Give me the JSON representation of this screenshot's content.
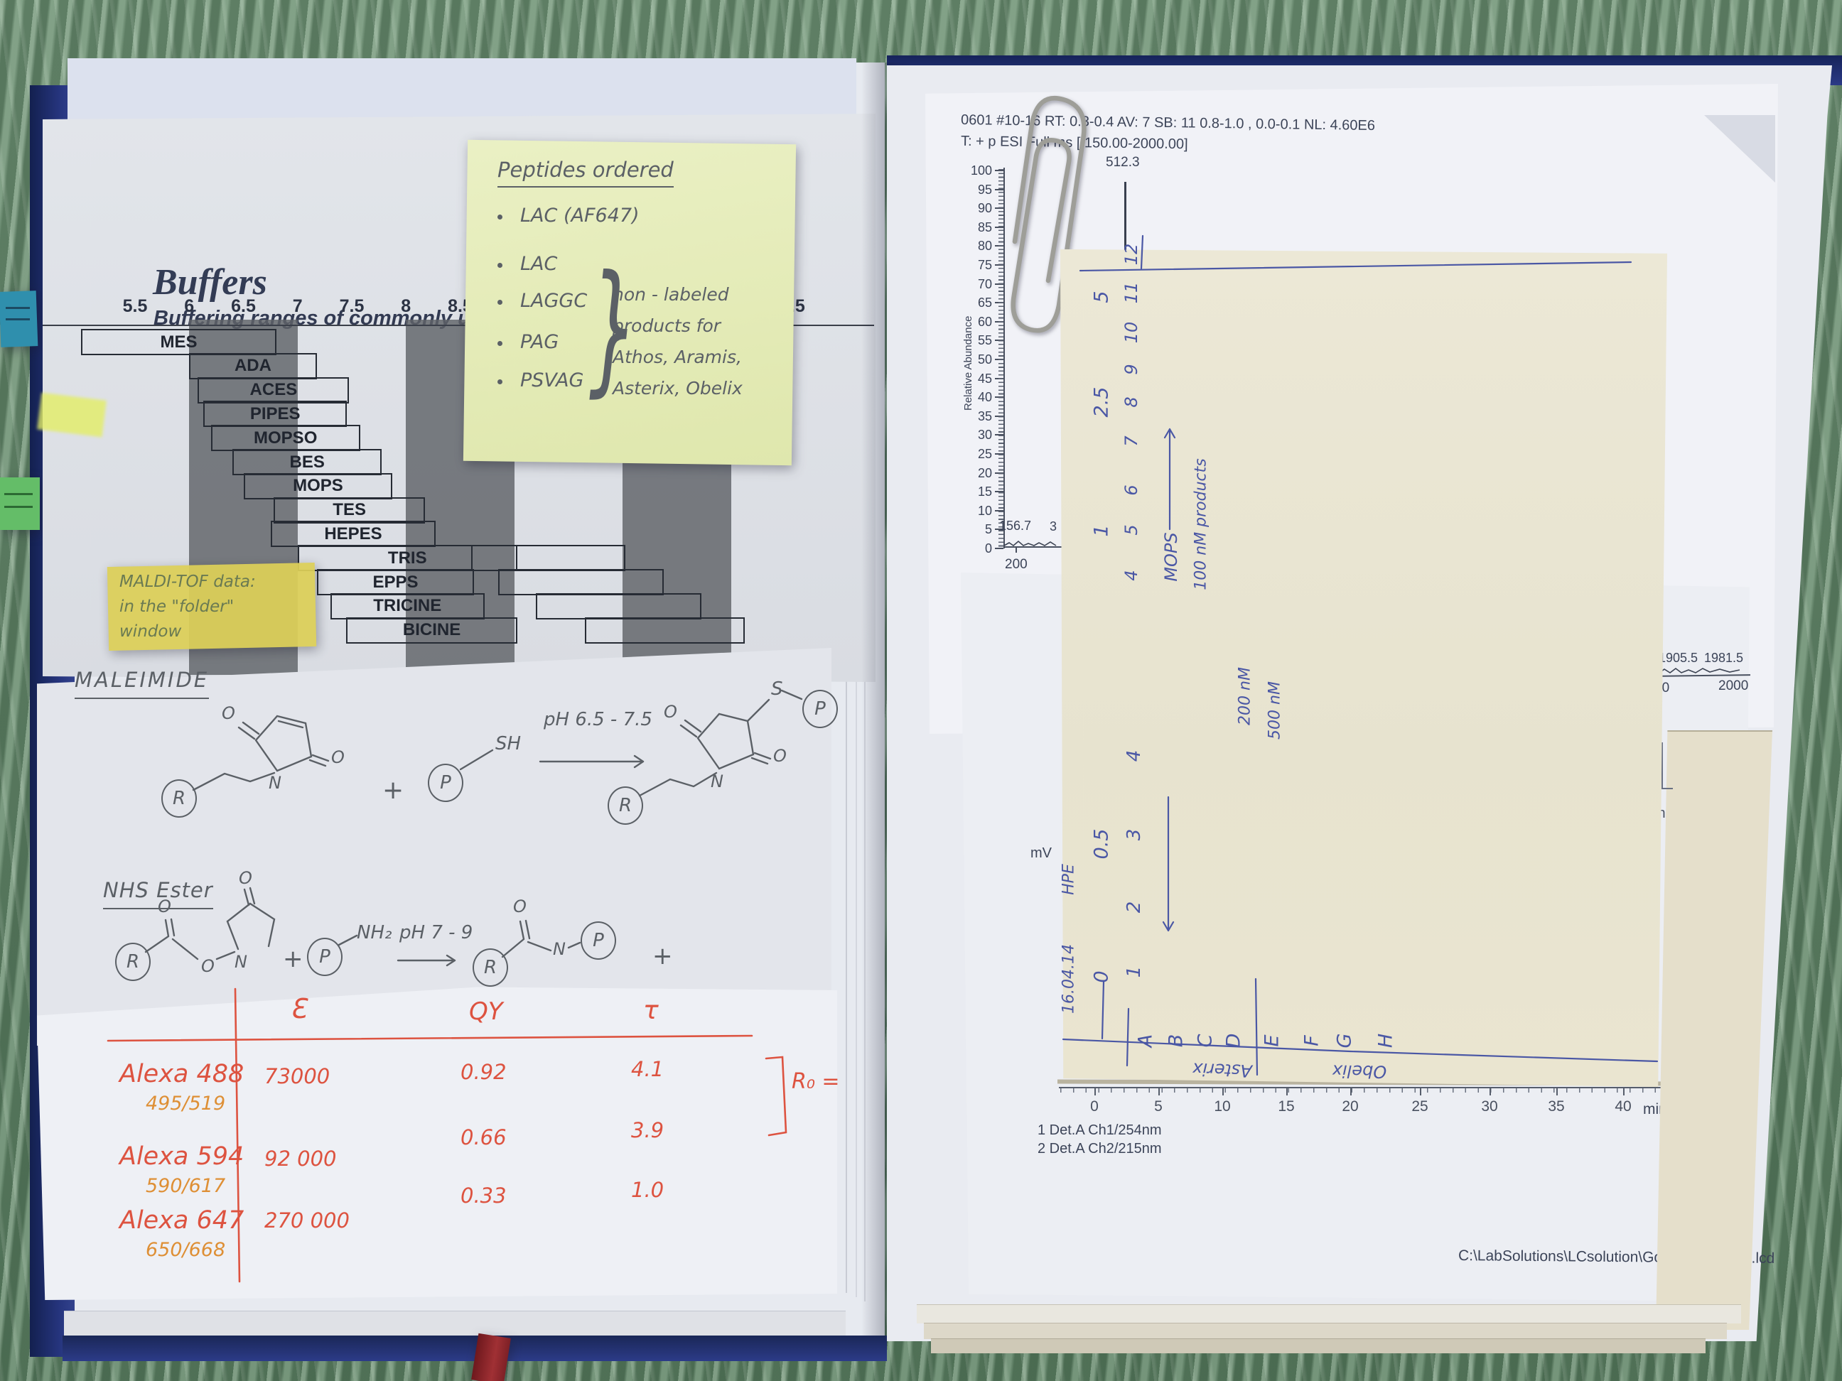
{
  "left_page": {
    "buffers_chart": {
      "title": "Buffers",
      "subtitle": "Buffering ranges of commonly used buff",
      "axis_labels": [
        "5.5",
        "6",
        "6.5",
        "7",
        "7.5",
        "8",
        "8.5"
      ],
      "axis_fragment": "1.5",
      "bars": [
        {
          "label": "MES",
          "from": 5.0,
          "to": 6.78
        },
        {
          "label": "ADA",
          "from": 6.0,
          "to": 7.15
        },
        {
          "label": "ACES",
          "from": 6.08,
          "to": 7.45
        },
        {
          "label": "PIPES",
          "from": 6.13,
          "to": 7.43
        },
        {
          "label": "MOPSO",
          "from": 6.2,
          "to": 7.55
        },
        {
          "label": "BES",
          "from": 6.4,
          "to": 7.75
        },
        {
          "label": "MOPS",
          "from": 6.5,
          "to": 7.85
        },
        {
          "label": "TES",
          "from": 6.78,
          "to": 8.15
        },
        {
          "label": "HEPES",
          "from": 6.75,
          "to": 8.25
        },
        {
          "label": "TRIS",
          "from": 7.0,
          "to": 9.0
        },
        {
          "label": "EPPS",
          "from": 7.18,
          "to": 8.6
        },
        {
          "label": "TRICINE",
          "from": 7.3,
          "to": 8.7
        },
        {
          "label": "BICINE",
          "from": 7.45,
          "to": 9.0
        }
      ]
    },
    "sticky_note_peptides": {
      "title": "Peptides ordered",
      "items": [
        "LAC (AF647)",
        "LAC",
        "LAGGC",
        "PAG",
        "PSVAG"
      ],
      "brace_glyph": "}",
      "note_lines": [
        "non - labeled",
        "products for",
        "Athos, Aramis,",
        "Asterix, Obelix"
      ]
    },
    "sticky_note_maldi": {
      "lines": [
        "MALDI-TOF data:",
        "in the \"folder\"",
        "window"
      ]
    },
    "maleimide_section": {
      "title": "MALEIMIDE",
      "labels": {
        "r": "R",
        "p": "P",
        "o": "O",
        "n": "N",
        "s": "S",
        "sh": "SH",
        "plus": "+",
        "ph": "pH 6.5 - 7.5"
      }
    },
    "nhs_section": {
      "title": "NHS Ester",
      "labels": {
        "r": "R",
        "p": "P",
        "o": "O",
        "n": "N",
        "nh2": "NH₂",
        "plus": "+",
        "ph": "pH 7 - 9"
      }
    },
    "dye_table": {
      "col_epsilon": "Ɛ",
      "col_qy": "QY",
      "col_tau": "τ",
      "rows": [
        {
          "name": "Alexa 488",
          "wavelengths": "495/519",
          "epsilon": "73000",
          "qy": "0.92",
          "tau": "4.1"
        },
        {
          "name": "Alexa 594",
          "wavelengths": "590/617",
          "epsilon": "92 000",
          "qy": "0.66",
          "tau": "3.9"
        },
        {
          "name": "Alexa 647",
          "wavelengths": "650/668",
          "epsilon": "270 000",
          "qy": "0.33",
          "tau": "1.0"
        }
      ],
      "r0_note": "R₀ ="
    }
  },
  "right_page": {
    "ms_printout": {
      "header_line1": "0601 #10-16  RT: 0.3-0.4  AV: 7  SB: 11  0.8-1.0 , 0.0-0.1  NL: 4.60E6",
      "header_line2": "T: + p ESI Full ms [ 150.00-2000.00]",
      "y_axis_label": "Relative Abundance",
      "y_ticks": [
        "100",
        "95",
        "90",
        "85",
        "80",
        "75",
        "70",
        "65",
        "60",
        "55",
        "50",
        "45",
        "40",
        "35",
        "30",
        "25",
        "20",
        "15",
        "10",
        "5",
        "0"
      ],
      "main_peak_label": "512.3",
      "minor_peak_label": "156.7",
      "clipped_peak_label": "3",
      "x_tick_left": "200",
      "right_peak_labels": [
        "1905.5",
        "1981.5"
      ],
      "x_tick_right_partial": "00",
      "x_tick_right": "2000"
    },
    "handwritten_overlay": {
      "date": "16.04.14",
      "side_note": "HPE",
      "outer_scale": [
        "5",
        "2.5",
        "1",
        "0.5",
        "0"
      ],
      "lane_numbers_upper": [
        "12",
        "11",
        "10",
        "9",
        "8",
        "7",
        "6",
        "5",
        "4"
      ],
      "lane_numbers_lower": [
        "4",
        "3",
        "2",
        "1"
      ],
      "mops_label": "MOPS",
      "series_labels": [
        "100 nM  products",
        "200 nM",
        "500 nM"
      ],
      "fraction_letters": [
        "A",
        "B",
        "C",
        "D",
        "E",
        "F",
        "G",
        "H"
      ],
      "group_left": "Asterix",
      "group_right": "Obelix"
    },
    "chromatogram": {
      "mv_label": "mV",
      "x_ticks": [
        "0",
        "5",
        "10",
        "15",
        "20",
        "25",
        "30",
        "35",
        "40"
      ],
      "x_unit": "min",
      "legend_line1": "1  Det.A Ch1/254nm",
      "legend_line2": "2  Det.A Ch2/215nm",
      "file_path": "C:\\LabSolutions\\LCsolution\\Gosia\\4 Fract. 7'.lcd",
      "fragment_min": "in",
      "fragment_legend": "2"
    }
  }
}
